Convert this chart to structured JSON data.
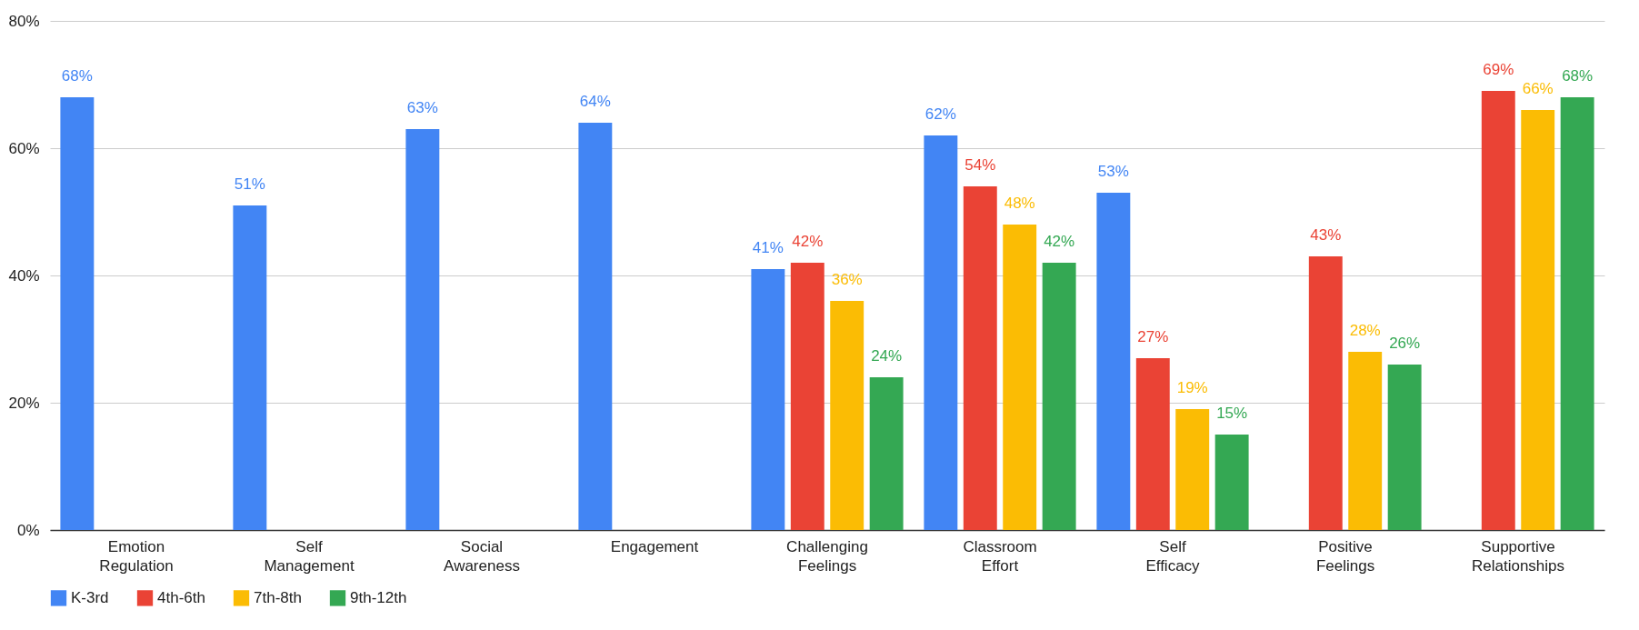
{
  "chart_data": {
    "type": "bar",
    "categories": [
      "Emotion Regulation",
      "Self Management",
      "Social Awareness",
      "Engagement",
      "Challenging Feelings",
      "Classroom Effort",
      "Self Efficacy",
      "Positive Feelings",
      "Supportive Relationships"
    ],
    "series": [
      {
        "name": "K-3rd",
        "color": "#4285f4",
        "values": [
          68,
          51,
          63,
          64,
          41,
          62,
          53,
          null,
          null
        ],
        "value_labels": [
          "68%",
          "51%",
          "63%",
          "64%",
          "41%",
          "62%",
          "53%",
          null,
          null
        ]
      },
      {
        "name": "4th-6th",
        "color": "#ea4335",
        "values": [
          null,
          null,
          null,
          null,
          42,
          54,
          27,
          43,
          69
        ],
        "value_labels": [
          null,
          null,
          null,
          null,
          "42%",
          "54%",
          "27%",
          "43%",
          "69%"
        ]
      },
      {
        "name": "7th-8th",
        "color": "#fbbc04",
        "values": [
          null,
          null,
          null,
          null,
          36,
          48,
          19,
          28,
          66
        ],
        "value_labels": [
          null,
          null,
          null,
          null,
          "36%",
          "48%",
          "19%",
          "28%",
          "66%"
        ]
      },
      {
        "name": "9th-12th",
        "color": "#34a853",
        "values": [
          null,
          null,
          null,
          null,
          24,
          42,
          15,
          26,
          68
        ],
        "value_labels": [
          null,
          null,
          null,
          null,
          "24%",
          "42%",
          "15%",
          "26%",
          "68%"
        ]
      }
    ],
    "ylim": [
      0,
      80
    ],
    "yticks": [
      {
        "value": 0,
        "label": "0%"
      },
      {
        "value": 20,
        "label": "20%"
      },
      {
        "value": 40,
        "label": "40%"
      },
      {
        "value": 60,
        "label": "60%"
      },
      {
        "value": 80,
        "label": "80%"
      }
    ],
    "grid": "y",
    "legend": "bottom"
  }
}
